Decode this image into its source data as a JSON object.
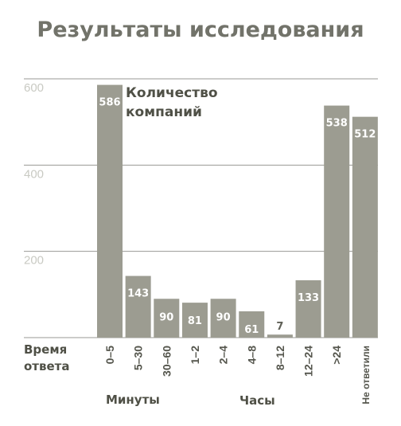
{
  "chart_data": {
    "type": "bar",
    "title": "Результаты исследования",
    "series": [
      {
        "name": "Количество компаний",
        "values": [
          586,
          143,
          90,
          81,
          90,
          61,
          7,
          133,
          538,
          512
        ]
      }
    ],
    "categories": [
      "0–5",
      "5–30",
      "30–60",
      "1–2",
      "2–4",
      "4–8",
      "8–12",
      "12–24",
      ">24",
      "Не ответили"
    ],
    "value_labels": [
      "586",
      "143",
      "90",
      "81",
      "90",
      "61",
      "7",
      "133",
      "538",
      "512"
    ],
    "xlabel": "Время ответа",
    "group_labels": [
      "Минуты",
      "Часы"
    ],
    "ylim": [
      0,
      600
    ],
    "yticks": [
      200,
      400,
      600
    ],
    "ytick_labels": [
      "200",
      "400",
      "600"
    ],
    "grid": true,
    "colors": {
      "bar": "#9c9c91",
      "title": "#72736a",
      "tick": "#c9cac3",
      "grid": "#9a9a94"
    }
  }
}
